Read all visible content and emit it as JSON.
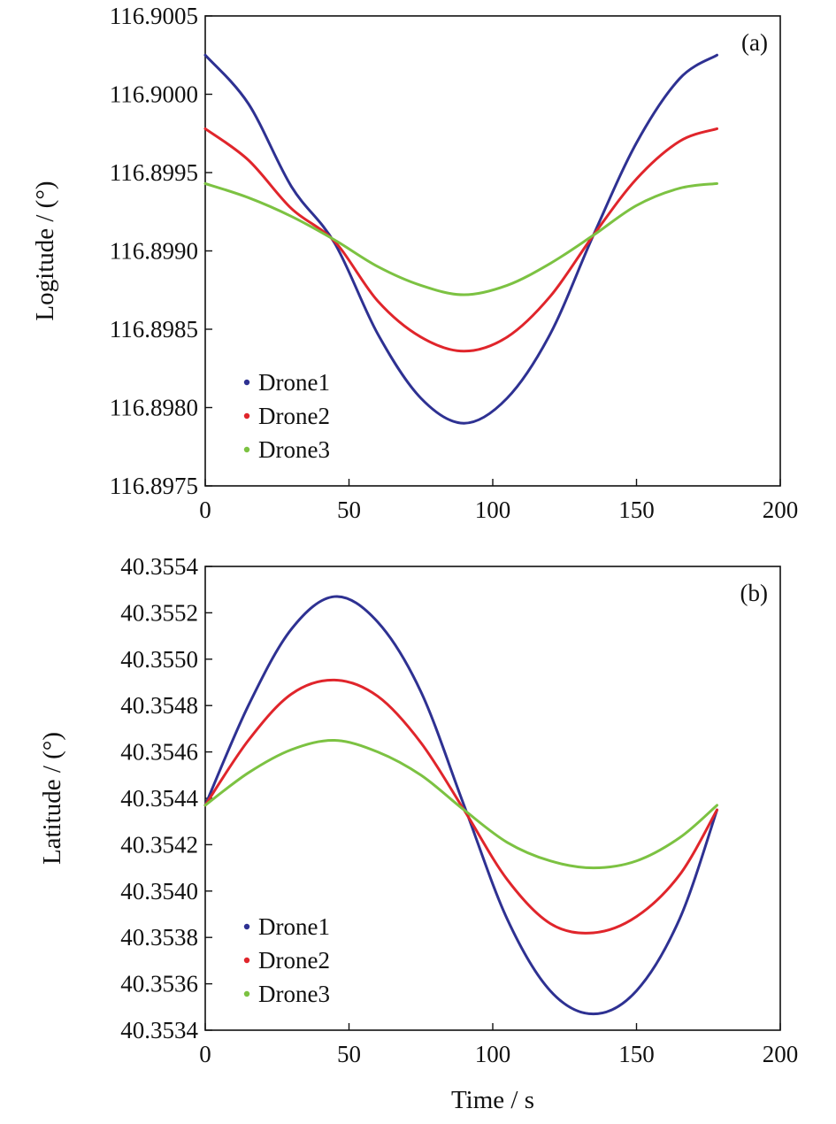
{
  "chart_data": [
    {
      "type": "line",
      "panel_label": "(a)",
      "xlabel": "",
      "ylabel": "Logitude / (°)",
      "xlim": [
        0,
        200
      ],
      "ylim": [
        116.8975,
        116.9005
      ],
      "xticks": [
        "0",
        "50",
        "100",
        "150",
        "200"
      ],
      "yticks": [
        "116.8975",
        "116.8980",
        "116.8985",
        "116.8990",
        "116.8995",
        "116.9000",
        "116.9005"
      ],
      "legend_position": "lower-left",
      "series": [
        {
          "name": "Drone1",
          "color": "#2e3192",
          "x": [
            0,
            15,
            30,
            45,
            60,
            75,
            90,
            105,
            120,
            135,
            150,
            165,
            178
          ],
          "y": [
            116.90025,
            116.89994,
            116.89941,
            116.89905,
            116.89847,
            116.89806,
            116.8979,
            116.89806,
            116.89847,
            116.8991,
            116.89969,
            116.9001,
            116.90025
          ]
        },
        {
          "name": "Drone2",
          "color": "#e0252b",
          "x": [
            0,
            15,
            30,
            45,
            60,
            75,
            90,
            105,
            120,
            135,
            150,
            165,
            178
          ],
          "y": [
            116.89978,
            116.89958,
            116.89927,
            116.89906,
            116.89868,
            116.89845,
            116.89836,
            116.89845,
            116.89871,
            116.8991,
            116.89946,
            116.8997,
            116.89978
          ]
        },
        {
          "name": "Drone3",
          "color": "#7cc242",
          "x": [
            0,
            15,
            30,
            45,
            60,
            75,
            90,
            105,
            120,
            135,
            150,
            165,
            178
          ],
          "y": [
            116.89943,
            116.89934,
            116.89922,
            116.89907,
            116.8989,
            116.89878,
            116.89872,
            116.89878,
            116.89892,
            116.8991,
            116.89929,
            116.8994,
            116.89943
          ]
        }
      ]
    },
    {
      "type": "line",
      "panel_label": "(b)",
      "xlabel": "Time / s",
      "ylabel": "Latitude / (°)",
      "xlim": [
        0,
        200
      ],
      "ylim": [
        40.3534,
        40.3554
      ],
      "xticks": [
        "0",
        "50",
        "100",
        "150",
        "200"
      ],
      "yticks": [
        "40.3534",
        "40.3536",
        "40.3538",
        "40.3540",
        "40.3542",
        "40.3544",
        "40.3546",
        "40.3548",
        "40.3550",
        "40.3552",
        "40.3554"
      ],
      "legend_position": "lower-left",
      "series": [
        {
          "name": "Drone1",
          "color": "#2e3192",
          "x": [
            0,
            15,
            30,
            45,
            60,
            75,
            90,
            105,
            120,
            135,
            150,
            165,
            178
          ],
          "y": [
            40.35437,
            40.3548,
            40.35513,
            40.35527,
            40.35516,
            40.35486,
            40.35437,
            40.35388,
            40.35357,
            40.35347,
            40.35357,
            40.35388,
            40.35435
          ]
        },
        {
          "name": "Drone2",
          "color": "#e0252b",
          "x": [
            0,
            15,
            30,
            45,
            60,
            75,
            90,
            105,
            120,
            135,
            150,
            165,
            178
          ],
          "y": [
            40.35437,
            40.35465,
            40.35485,
            40.35491,
            40.35484,
            40.35464,
            40.35435,
            40.35405,
            40.35386,
            40.35382,
            40.35389,
            40.35407,
            40.35435
          ]
        },
        {
          "name": "Drone3",
          "color": "#7cc242",
          "x": [
            0,
            15,
            30,
            45,
            60,
            75,
            90,
            105,
            120,
            135,
            150,
            165,
            178
          ],
          "y": [
            40.35437,
            40.35451,
            40.35461,
            40.35465,
            40.3546,
            40.3545,
            40.35435,
            40.35421,
            40.35413,
            40.3541,
            40.35413,
            40.35423,
            40.35437
          ]
        }
      ]
    }
  ]
}
